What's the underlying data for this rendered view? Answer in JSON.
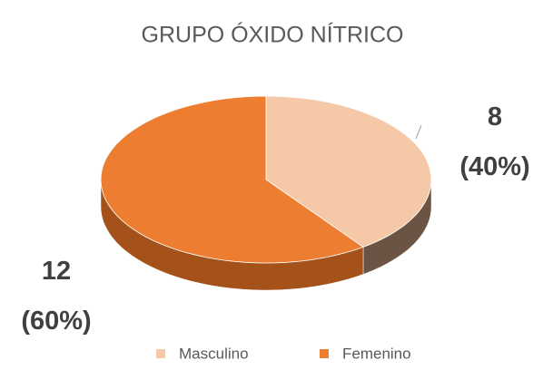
{
  "chart_data": {
    "type": "pie3d",
    "title": "GRUPO ÓXIDO NÍTRICO",
    "categories": [
      "Masculino",
      "Femenino"
    ],
    "values": [
      8,
      12
    ],
    "value_labels": [
      "8\n(40%)",
      "12\n(60%)"
    ],
    "colors": [
      "#f5c9a8",
      "#ed7d31"
    ],
    "side_colors": [
      "#6b5444",
      "#a4511a"
    ],
    "legend": "bottom"
  }
}
